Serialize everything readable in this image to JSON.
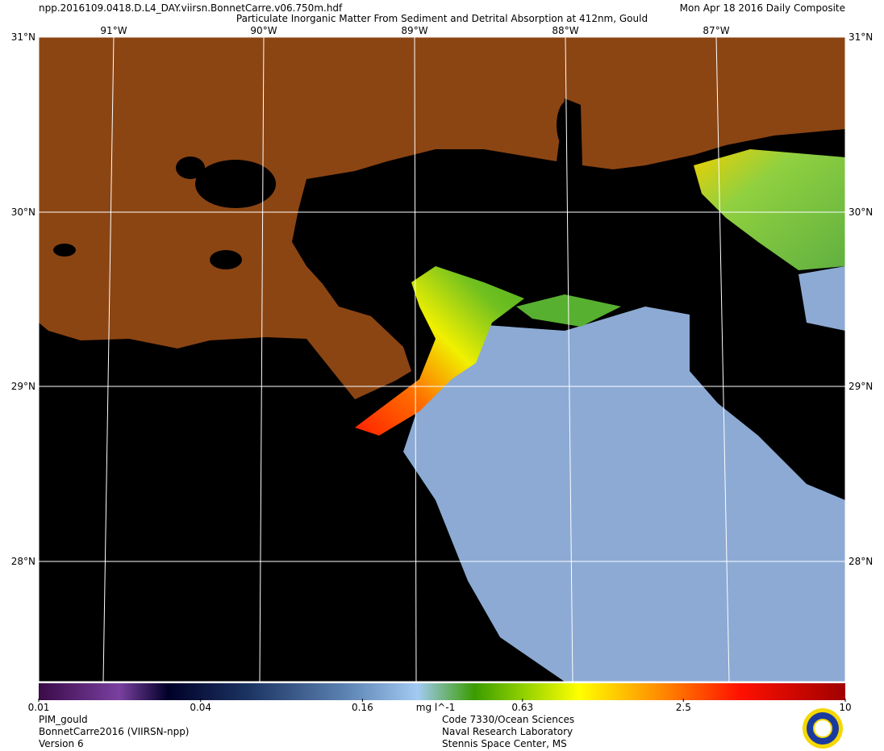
{
  "header": {
    "file": "npp.2016109.0418.D.L4_DAY.viirsn.BonnetCarre.v06.750m.hdf",
    "title": "Particulate Inorganic Matter From Sediment and Detrital Absorption at 412nm, Gould",
    "date": "Mon Apr 18 2016 Daily Composite"
  },
  "map": {
    "lat_labels": [
      "31°N",
      "30°N",
      "29°N",
      "28°N"
    ],
    "lon_labels": [
      "91°W",
      "90°W",
      "89°W",
      "88°W",
      "87°W"
    ]
  },
  "colorbar": {
    "range": [
      0.01,
      10
    ],
    "ticks": [
      0.01,
      0.04,
      0.16,
      0.63,
      2.5,
      10
    ],
    "log_scale": true,
    "unit": "mg l^-1"
  },
  "footer": {
    "left": [
      "PIM_gould",
      "BonnetCarre2016 (VIIRSN-npp)",
      "Version 6"
    ],
    "center": [
      "Code 7330/Ocean Sciences",
      "Naval Research Laboratory",
      "Stennis Space Center, MS"
    ]
  }
}
